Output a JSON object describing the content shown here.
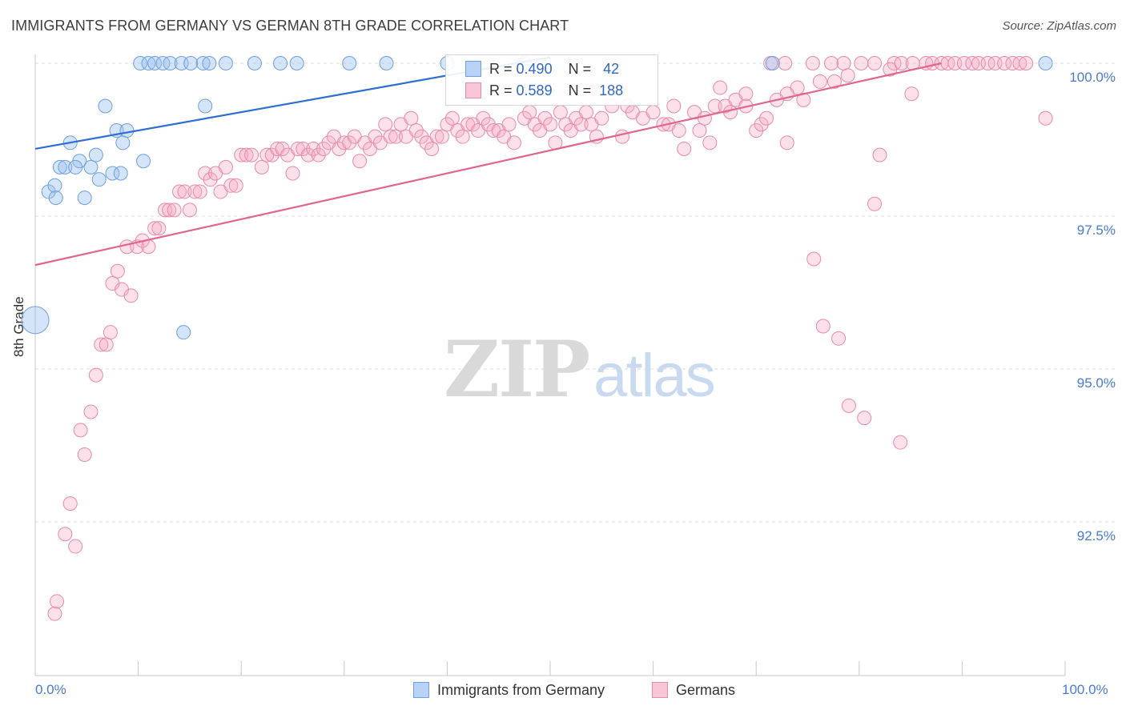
{
  "header": {
    "title": "IMMIGRANTS FROM GERMANY VS GERMAN 8TH GRADE CORRELATION CHART",
    "source": "Source: ZipAtlas.com"
  },
  "watermark": {
    "zip": "ZIP",
    "atlas": "atlas"
  },
  "legend": {
    "series": [
      {
        "name": "Immigrants from Germany",
        "r_label": "R =",
        "r_value": "0.490",
        "n_label": "N =",
        "n_value": "42",
        "fill": "#b8d3f5",
        "stroke": "#6f9fe0"
      },
      {
        "name": "Germans",
        "r_label": "R =",
        "r_value": "0.589",
        "n_label": "N =",
        "n_value": "188",
        "fill": "#f8c6d6",
        "stroke": "#e98aa8"
      }
    ]
  },
  "chart_data": {
    "type": "scatter",
    "title": "IMMIGRANTS FROM GERMANY VS GERMAN 8TH GRADE CORRELATION CHART",
    "xlabel": "",
    "ylabel": "8th Grade",
    "x_tick_labels": [
      "0.0%",
      "100.0%"
    ],
    "y_tick_labels": [
      "100.0%",
      "97.5%",
      "95.0%",
      "92.5%"
    ],
    "y_ticks": [
      100.0,
      97.5,
      95.0,
      92.5
    ],
    "xlim": [
      0,
      100
    ],
    "ylim": [
      90.25,
      100.25
    ],
    "grid": true,
    "legend_position": "top-center",
    "colors": {
      "blue": "#4a86d8",
      "blue_line": "#2f6fcf",
      "pink": "#e98aa8",
      "pink_line": "#e0668f",
      "tick_text": "#4a7bd0"
    },
    "trendlines": [
      {
        "series": "Immigrants from Germany",
        "x": [
          0,
          50
        ],
        "y": [
          98.6,
          100.1
        ]
      },
      {
        "series": "Germans",
        "x": [
          0,
          88
        ],
        "y": [
          96.7,
          100.0
        ]
      }
    ],
    "series": [
      {
        "name": "Immigrants from Germany",
        "points": [
          [
            10.2,
            100
          ],
          [
            11.0,
            100
          ],
          [
            11.6,
            100
          ],
          [
            12.4,
            100
          ],
          [
            13.1,
            100
          ],
          [
            14.2,
            100
          ],
          [
            15.1,
            100
          ],
          [
            16.3,
            100
          ],
          [
            16.9,
            100
          ],
          [
            18.5,
            100
          ],
          [
            21.3,
            100
          ],
          [
            23.8,
            100
          ],
          [
            25.4,
            100
          ],
          [
            30.5,
            100
          ],
          [
            34.1,
            100
          ],
          [
            40.0,
            100
          ],
          [
            47.5,
            100
          ],
          [
            71.6,
            100
          ],
          [
            98.1,
            100
          ],
          [
            6.8,
            99.3
          ],
          [
            16.5,
            99.3
          ],
          [
            7.9,
            98.9
          ],
          [
            8.9,
            98.9
          ],
          [
            8.5,
            98.7
          ],
          [
            3.4,
            98.7
          ],
          [
            5.9,
            98.5
          ],
          [
            4.3,
            98.4
          ],
          [
            10.5,
            98.4
          ],
          [
            2.4,
            98.3
          ],
          [
            2.9,
            98.3
          ],
          [
            3.9,
            98.3
          ],
          [
            5.4,
            98.3
          ],
          [
            7.5,
            98.2
          ],
          [
            8.3,
            98.2
          ],
          [
            6.2,
            98.1
          ],
          [
            1.3,
            97.9
          ],
          [
            1.9,
            98.0
          ],
          [
            2.0,
            97.8
          ],
          [
            4.8,
            97.8
          ],
          [
            14.4,
            95.6
          ]
        ],
        "large_point": [
          0,
          95.8
        ]
      },
      {
        "name": "Germans",
        "points": [
          [
            72.8,
            100
          ],
          [
            75.5,
            100
          ],
          [
            77.3,
            100
          ],
          [
            78.5,
            100
          ],
          [
            80.2,
            100
          ],
          [
            81.5,
            100
          ],
          [
            83.4,
            100
          ],
          [
            84.1,
            100
          ],
          [
            85.2,
            100
          ],
          [
            86.5,
            100
          ],
          [
            87.1,
            100
          ],
          [
            88.0,
            100
          ],
          [
            88.6,
            100
          ],
          [
            89.3,
            100
          ],
          [
            90.2,
            100
          ],
          [
            91.0,
            100
          ],
          [
            91.6,
            100
          ],
          [
            92.5,
            100
          ],
          [
            93.2,
            100
          ],
          [
            94.1,
            100
          ],
          [
            94.9,
            100
          ],
          [
            95.6,
            100
          ],
          [
            96.2,
            100
          ],
          [
            71.4,
            100
          ],
          [
            83.0,
            99.9
          ],
          [
            78.9,
            99.8
          ],
          [
            76.2,
            99.7
          ],
          [
            74.0,
            99.6
          ],
          [
            77.6,
            99.7
          ],
          [
            66.5,
            99.6
          ],
          [
            69.0,
            99.5
          ],
          [
            73.0,
            99.5
          ],
          [
            74.6,
            99.4
          ],
          [
            85.1,
            99.5
          ],
          [
            98.1,
            99.1
          ],
          [
            1.9,
            91.0
          ],
          [
            2.1,
            91.2
          ],
          [
            2.9,
            92.3
          ],
          [
            3.4,
            92.8
          ],
          [
            3.9,
            92.1
          ],
          [
            4.4,
            94.0
          ],
          [
            4.8,
            93.6
          ],
          [
            5.4,
            94.3
          ],
          [
            5.9,
            94.9
          ],
          [
            6.4,
            95.4
          ],
          [
            6.9,
            95.4
          ],
          [
            7.3,
            95.6
          ],
          [
            7.5,
            96.4
          ],
          [
            8.0,
            96.6
          ],
          [
            8.4,
            96.3
          ],
          [
            8.9,
            97.0
          ],
          [
            9.3,
            96.2
          ],
          [
            9.9,
            97.0
          ],
          [
            10.4,
            97.1
          ],
          [
            11.0,
            97.0
          ],
          [
            11.6,
            97.3
          ],
          [
            12.0,
            97.3
          ],
          [
            12.6,
            97.6
          ],
          [
            13.0,
            97.6
          ],
          [
            13.5,
            97.6
          ],
          [
            14.0,
            97.9
          ],
          [
            14.5,
            97.9
          ],
          [
            15.0,
            97.6
          ],
          [
            15.5,
            97.9
          ],
          [
            16.0,
            97.9
          ],
          [
            16.5,
            98.2
          ],
          [
            17.0,
            98.1
          ],
          [
            17.5,
            98.2
          ],
          [
            18.0,
            97.9
          ],
          [
            18.5,
            98.3
          ],
          [
            19.0,
            98.0
          ],
          [
            19.5,
            98.0
          ],
          [
            20.0,
            98.5
          ],
          [
            20.5,
            98.5
          ],
          [
            21.0,
            98.5
          ],
          [
            22.0,
            98.3
          ],
          [
            22.5,
            98.5
          ],
          [
            23.0,
            98.5
          ],
          [
            23.5,
            98.6
          ],
          [
            24.0,
            98.6
          ],
          [
            24.5,
            98.5
          ],
          [
            25.0,
            98.2
          ],
          [
            25.5,
            98.6
          ],
          [
            26.0,
            98.6
          ],
          [
            26.5,
            98.5
          ],
          [
            27.0,
            98.6
          ],
          [
            27.5,
            98.5
          ],
          [
            28.0,
            98.6
          ],
          [
            28.5,
            98.7
          ],
          [
            29.0,
            98.8
          ],
          [
            29.5,
            98.6
          ],
          [
            30.0,
            98.7
          ],
          [
            30.5,
            98.7
          ],
          [
            31.0,
            98.8
          ],
          [
            31.5,
            98.4
          ],
          [
            32.0,
            98.7
          ],
          [
            32.5,
            98.6
          ],
          [
            33.0,
            98.8
          ],
          [
            33.5,
            98.7
          ],
          [
            34.0,
            99.0
          ],
          [
            34.5,
            98.8
          ],
          [
            35.0,
            98.8
          ],
          [
            35.5,
            99.0
          ],
          [
            36.0,
            98.8
          ],
          [
            36.5,
            99.1
          ],
          [
            37.0,
            98.9
          ],
          [
            37.5,
            98.8
          ],
          [
            38.0,
            98.7
          ],
          [
            38.5,
            98.6
          ],
          [
            39.0,
            98.8
          ],
          [
            39.5,
            98.8
          ],
          [
            40.0,
            99.0
          ],
          [
            40.5,
            99.1
          ],
          [
            41.0,
            98.9
          ],
          [
            41.5,
            98.8
          ],
          [
            42.0,
            99.0
          ],
          [
            42.5,
            99.0
          ],
          [
            43.0,
            98.9
          ],
          [
            43.5,
            99.1
          ],
          [
            44.0,
            99.0
          ],
          [
            44.5,
            98.9
          ],
          [
            45.0,
            98.9
          ],
          [
            45.5,
            98.8
          ],
          [
            46.0,
            99.0
          ],
          [
            46.5,
            98.7
          ],
          [
            47.5,
            99.1
          ],
          [
            48.0,
            99.2
          ],
          [
            48.5,
            99.0
          ],
          [
            49.0,
            98.9
          ],
          [
            49.5,
            99.1
          ],
          [
            50.0,
            99.0
          ],
          [
            50.5,
            98.7
          ],
          [
            51.0,
            99.2
          ],
          [
            51.5,
            99.0
          ],
          [
            52.0,
            98.9
          ],
          [
            52.5,
            99.1
          ],
          [
            53.0,
            99.0
          ],
          [
            53.5,
            99.2
          ],
          [
            54.0,
            99.0
          ],
          [
            54.5,
            98.8
          ],
          [
            55.0,
            99.1
          ],
          [
            56.0,
            99.3
          ],
          [
            57.0,
            98.8
          ],
          [
            57.5,
            99.3
          ],
          [
            58.0,
            99.2
          ],
          [
            59.0,
            99.1
          ],
          [
            60.0,
            99.2
          ],
          [
            61.0,
            99.0
          ],
          [
            61.5,
            99.0
          ],
          [
            62.0,
            99.3
          ],
          [
            62.5,
            98.9
          ],
          [
            63.0,
            98.6
          ],
          [
            64.0,
            99.2
          ],
          [
            64.5,
            98.9
          ],
          [
            65.0,
            99.1
          ],
          [
            65.5,
            98.7
          ],
          [
            66.0,
            99.3
          ],
          [
            67.0,
            99.3
          ],
          [
            67.5,
            99.2
          ],
          [
            68.0,
            99.4
          ],
          [
            69.0,
            99.3
          ],
          [
            70.0,
            98.9
          ],
          [
            70.5,
            99.0
          ],
          [
            71.0,
            99.1
          ],
          [
            72.0,
            99.4
          ],
          [
            73.0,
            98.7
          ],
          [
            75.6,
            96.8
          ],
          [
            76.5,
            95.7
          ],
          [
            78.0,
            95.5
          ],
          [
            79.0,
            94.4
          ],
          [
            80.5,
            94.2
          ],
          [
            81.5,
            97.7
          ],
          [
            82.0,
            98.5
          ],
          [
            84.0,
            93.8
          ]
        ]
      }
    ]
  },
  "axes": {
    "x_left_label": "0.0%",
    "x_right_label": "100.0%",
    "y_axis_title": "8th Grade"
  }
}
